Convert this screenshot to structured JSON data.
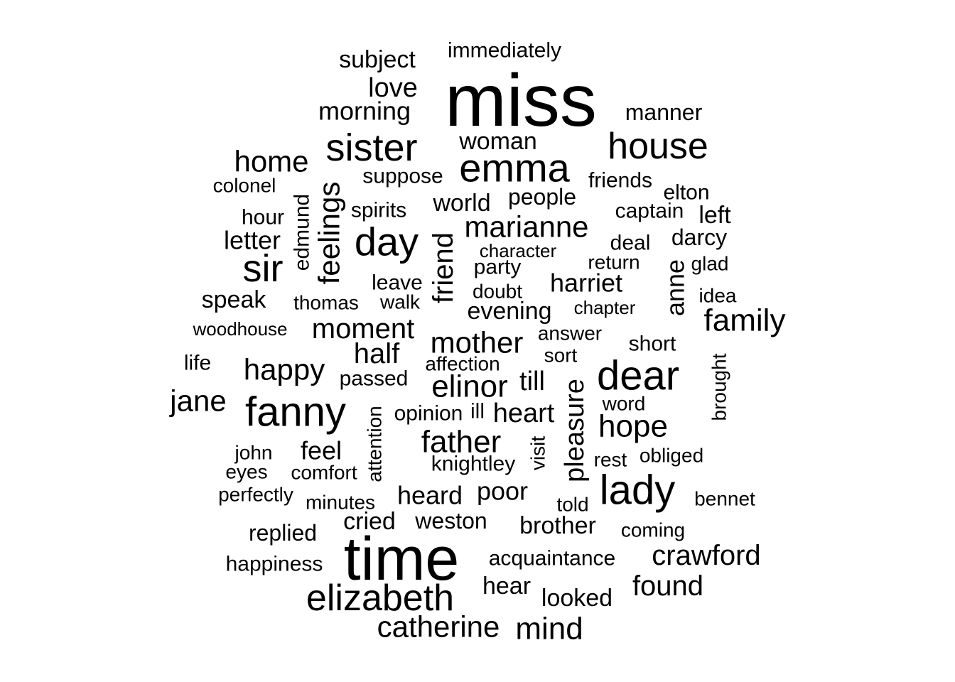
{
  "chart_data": {
    "type": "wordcloud",
    "words": [
      {
        "text": "miss",
        "size": 10,
        "rotated": false
      },
      {
        "text": "time",
        "size": 9,
        "rotated": false
      },
      {
        "text": "elizabeth",
        "size": 7,
        "rotated": false
      },
      {
        "text": "fanny",
        "size": 7,
        "rotated": false
      },
      {
        "text": "emma",
        "size": 6,
        "rotated": false
      },
      {
        "text": "sister",
        "size": 6,
        "rotated": false
      },
      {
        "text": "house",
        "size": 6,
        "rotated": false
      },
      {
        "text": "day",
        "size": 6,
        "rotated": false
      },
      {
        "text": "sir",
        "size": 6,
        "rotated": false
      },
      {
        "text": "dear",
        "size": 6,
        "rotated": false
      },
      {
        "text": "lady",
        "size": 6,
        "rotated": false
      },
      {
        "text": "feelings",
        "size": 5,
        "rotated": true
      },
      {
        "text": "family",
        "size": 5,
        "rotated": false
      },
      {
        "text": "mother",
        "size": 5,
        "rotated": false
      },
      {
        "text": "elinor",
        "size": 5,
        "rotated": false
      },
      {
        "text": "father",
        "size": 5,
        "rotated": false
      },
      {
        "text": "catherine",
        "size": 5,
        "rotated": false
      },
      {
        "text": "marianne",
        "size": 5,
        "rotated": false
      },
      {
        "text": "home",
        "size": 5,
        "rotated": false
      },
      {
        "text": "hope",
        "size": 5,
        "rotated": false
      },
      {
        "text": "jane",
        "size": 5,
        "rotated": false
      },
      {
        "text": "happy",
        "size": 5,
        "rotated": false
      },
      {
        "text": "moment",
        "size": 5,
        "rotated": false
      },
      {
        "text": "crawford",
        "size": 5,
        "rotated": false
      },
      {
        "text": "mind",
        "size": 5,
        "rotated": false
      },
      {
        "text": "found",
        "size": 5,
        "rotated": false
      },
      {
        "text": "friend",
        "size": 5,
        "rotated": true
      },
      {
        "text": "pleasure",
        "size": 5,
        "rotated": true
      },
      {
        "text": "half",
        "size": 5,
        "rotated": false
      },
      {
        "text": "heart",
        "size": 4,
        "rotated": false
      },
      {
        "text": "harriet",
        "size": 4,
        "rotated": false
      },
      {
        "text": "anne",
        "size": 4,
        "rotated": true
      },
      {
        "text": "heard",
        "size": 4,
        "rotated": false
      },
      {
        "text": "till",
        "size": 4,
        "rotated": false
      },
      {
        "text": "love",
        "size": 4,
        "rotated": false
      },
      {
        "text": "morning",
        "size": 4,
        "rotated": false
      },
      {
        "text": "subject",
        "size": 4,
        "rotated": false
      },
      {
        "text": "woman",
        "size": 4,
        "rotated": false
      },
      {
        "text": "letter",
        "size": 4,
        "rotated": false
      },
      {
        "text": "world",
        "size": 4,
        "rotated": false
      },
      {
        "text": "brother",
        "size": 4,
        "rotated": false
      },
      {
        "text": "evening",
        "size": 4,
        "rotated": false
      },
      {
        "text": "poor",
        "size": 4,
        "rotated": false
      },
      {
        "text": "weston",
        "size": 4,
        "rotated": false
      },
      {
        "text": "replied",
        "size": 4,
        "rotated": false
      },
      {
        "text": "cried",
        "size": 4,
        "rotated": false
      },
      {
        "text": "feel",
        "size": 4,
        "rotated": false
      },
      {
        "text": "speak",
        "size": 4,
        "rotated": false
      },
      {
        "text": "darcy",
        "size": 4,
        "rotated": false
      },
      {
        "text": "manner",
        "size": 4,
        "rotated": false
      },
      {
        "text": "left",
        "size": 4,
        "rotated": false
      },
      {
        "text": "hear",
        "size": 4,
        "rotated": false
      },
      {
        "text": "looked",
        "size": 4,
        "rotated": false
      },
      {
        "text": "knightley",
        "size": 4,
        "rotated": false
      },
      {
        "text": "people",
        "size": 4,
        "rotated": false
      },
      {
        "text": "captain",
        "size": 3,
        "rotated": false
      },
      {
        "text": "edmund",
        "size": 3,
        "rotated": true
      },
      {
        "text": "party",
        "size": 3,
        "rotated": false
      },
      {
        "text": "spirits",
        "size": 3,
        "rotated": false
      },
      {
        "text": "suppose",
        "size": 3,
        "rotated": false
      },
      {
        "text": "friends",
        "size": 3,
        "rotated": false
      },
      {
        "text": "happiness",
        "size": 3,
        "rotated": false
      },
      {
        "text": "acquaintance",
        "size": 3,
        "rotated": false
      },
      {
        "text": "immediately",
        "size": 3,
        "rotated": false
      },
      {
        "text": "hour",
        "size": 3,
        "rotated": false
      },
      {
        "text": "deal",
        "size": 3,
        "rotated": false
      },
      {
        "text": "elton",
        "size": 3,
        "rotated": false
      },
      {
        "text": "leave",
        "size": 3,
        "rotated": false
      },
      {
        "text": "thomas",
        "size": 3,
        "rotated": false
      },
      {
        "text": "short",
        "size": 3,
        "rotated": false
      },
      {
        "text": "opinion",
        "size": 3,
        "rotated": false
      },
      {
        "text": "ill",
        "size": 3,
        "rotated": false
      },
      {
        "text": "passed",
        "size": 3,
        "rotated": false
      },
      {
        "text": "life",
        "size": 3,
        "rotated": false
      },
      {
        "text": "colonel",
        "size": 3,
        "rotated": false
      },
      {
        "text": "obliged",
        "size": 3,
        "rotated": false
      },
      {
        "text": "comfort",
        "size": 3,
        "rotated": false
      },
      {
        "text": "eyes",
        "size": 3,
        "rotated": false
      },
      {
        "text": "john",
        "size": 3,
        "rotated": false
      },
      {
        "text": "rest",
        "size": 3,
        "rotated": false
      },
      {
        "text": "bennet",
        "size": 3,
        "rotated": false
      },
      {
        "text": "coming",
        "size": 3,
        "rotated": false
      },
      {
        "text": "told",
        "size": 3,
        "rotated": false
      },
      {
        "text": "minutes",
        "size": 3,
        "rotated": false
      },
      {
        "text": "perfectly",
        "size": 3,
        "rotated": false
      },
      {
        "text": "word",
        "size": 3,
        "rotated": false
      },
      {
        "text": "affection",
        "size": 3,
        "rotated": false
      },
      {
        "text": "sort",
        "size": 3,
        "rotated": false
      },
      {
        "text": "answer",
        "size": 3,
        "rotated": false
      },
      {
        "text": "character",
        "size": 3,
        "rotated": false
      },
      {
        "text": "return",
        "size": 3,
        "rotated": false
      },
      {
        "text": "glad",
        "size": 3,
        "rotated": false
      },
      {
        "text": "idea",
        "size": 3,
        "rotated": false
      },
      {
        "text": "doubt",
        "size": 3,
        "rotated": false
      },
      {
        "text": "walk",
        "size": 3,
        "rotated": false
      },
      {
        "text": "chapter",
        "size": 3,
        "rotated": false
      },
      {
        "text": "woodhouse",
        "size": 3,
        "rotated": false
      },
      {
        "text": "attention",
        "size": 3,
        "rotated": true
      },
      {
        "text": "visit",
        "size": 3,
        "rotated": true
      },
      {
        "text": "brought",
        "size": 3,
        "rotated": true
      }
    ]
  }
}
